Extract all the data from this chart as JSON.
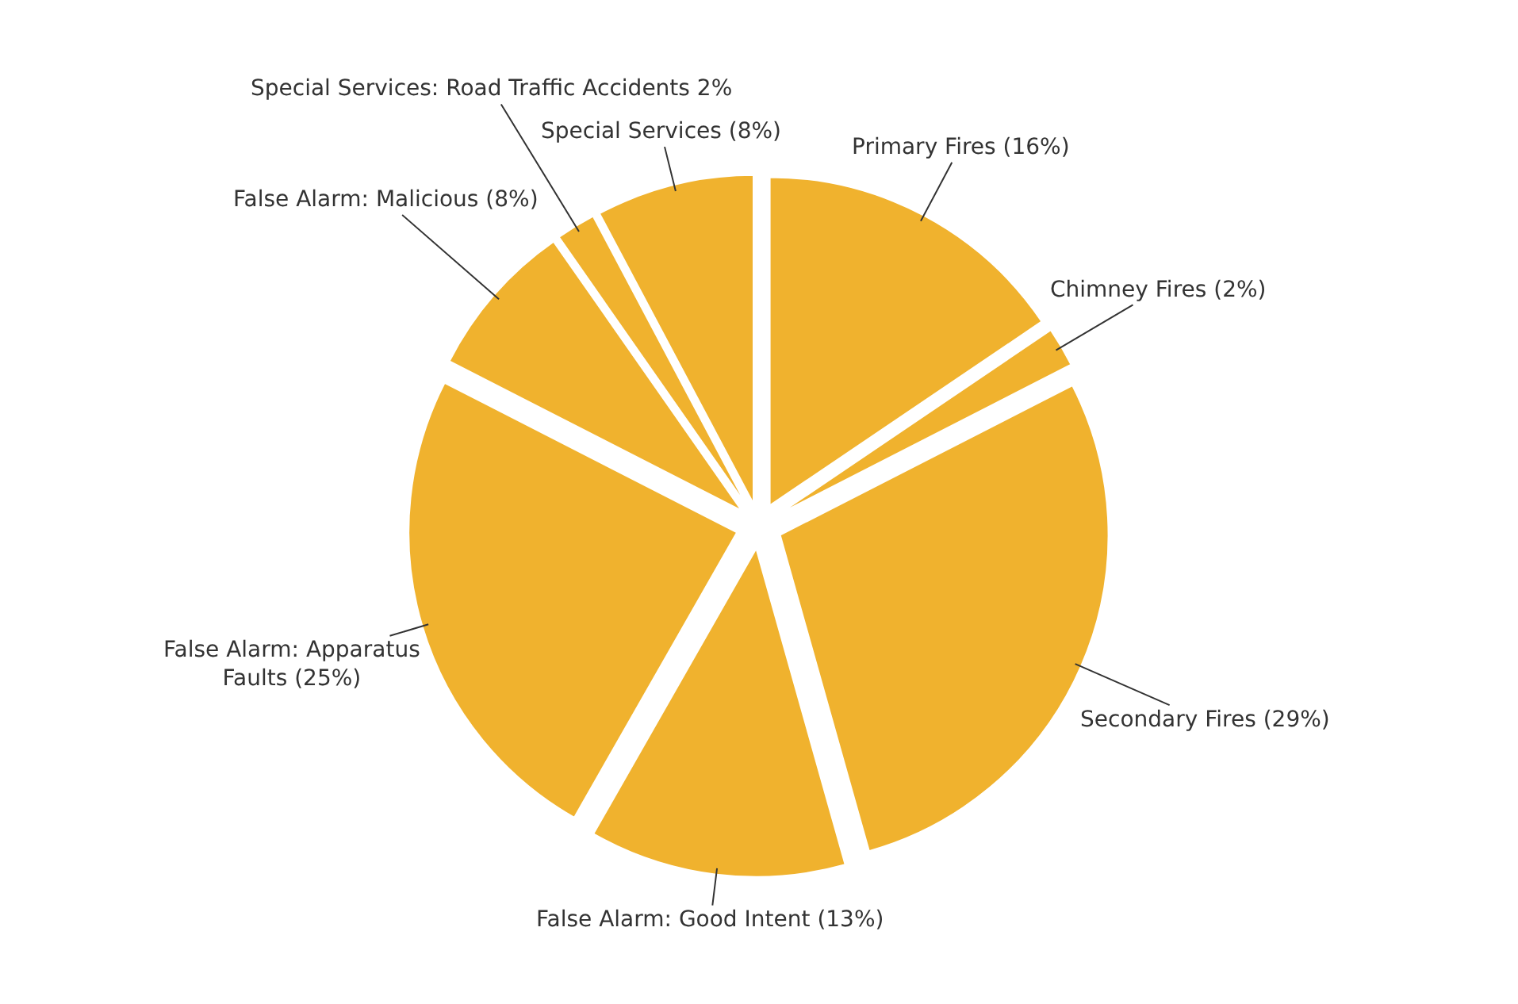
{
  "chart_data": {
    "type": "pie",
    "categories": [
      "Primary Fires (16%)",
      "Chimney Fires (2%)",
      "Secondary Fires (29%)",
      "False Alarm: Good Intent (13%)",
      "False Alarm: Apparatus Faults (25%)",
      "False Alarm: Malicious (8%)",
      "Special Services: Road Traffic Accidents 2%",
      "Special Services (8%)"
    ],
    "values": [
      16,
      2,
      29,
      13,
      25,
      8,
      2,
      8
    ],
    "colors": [
      "#f0b22e",
      "#f0b22e",
      "#f0b22e",
      "#f0b22e",
      "#f0b22e",
      "#f0b22e",
      "#f0b22e",
      "#f0b22e"
    ]
  }
}
